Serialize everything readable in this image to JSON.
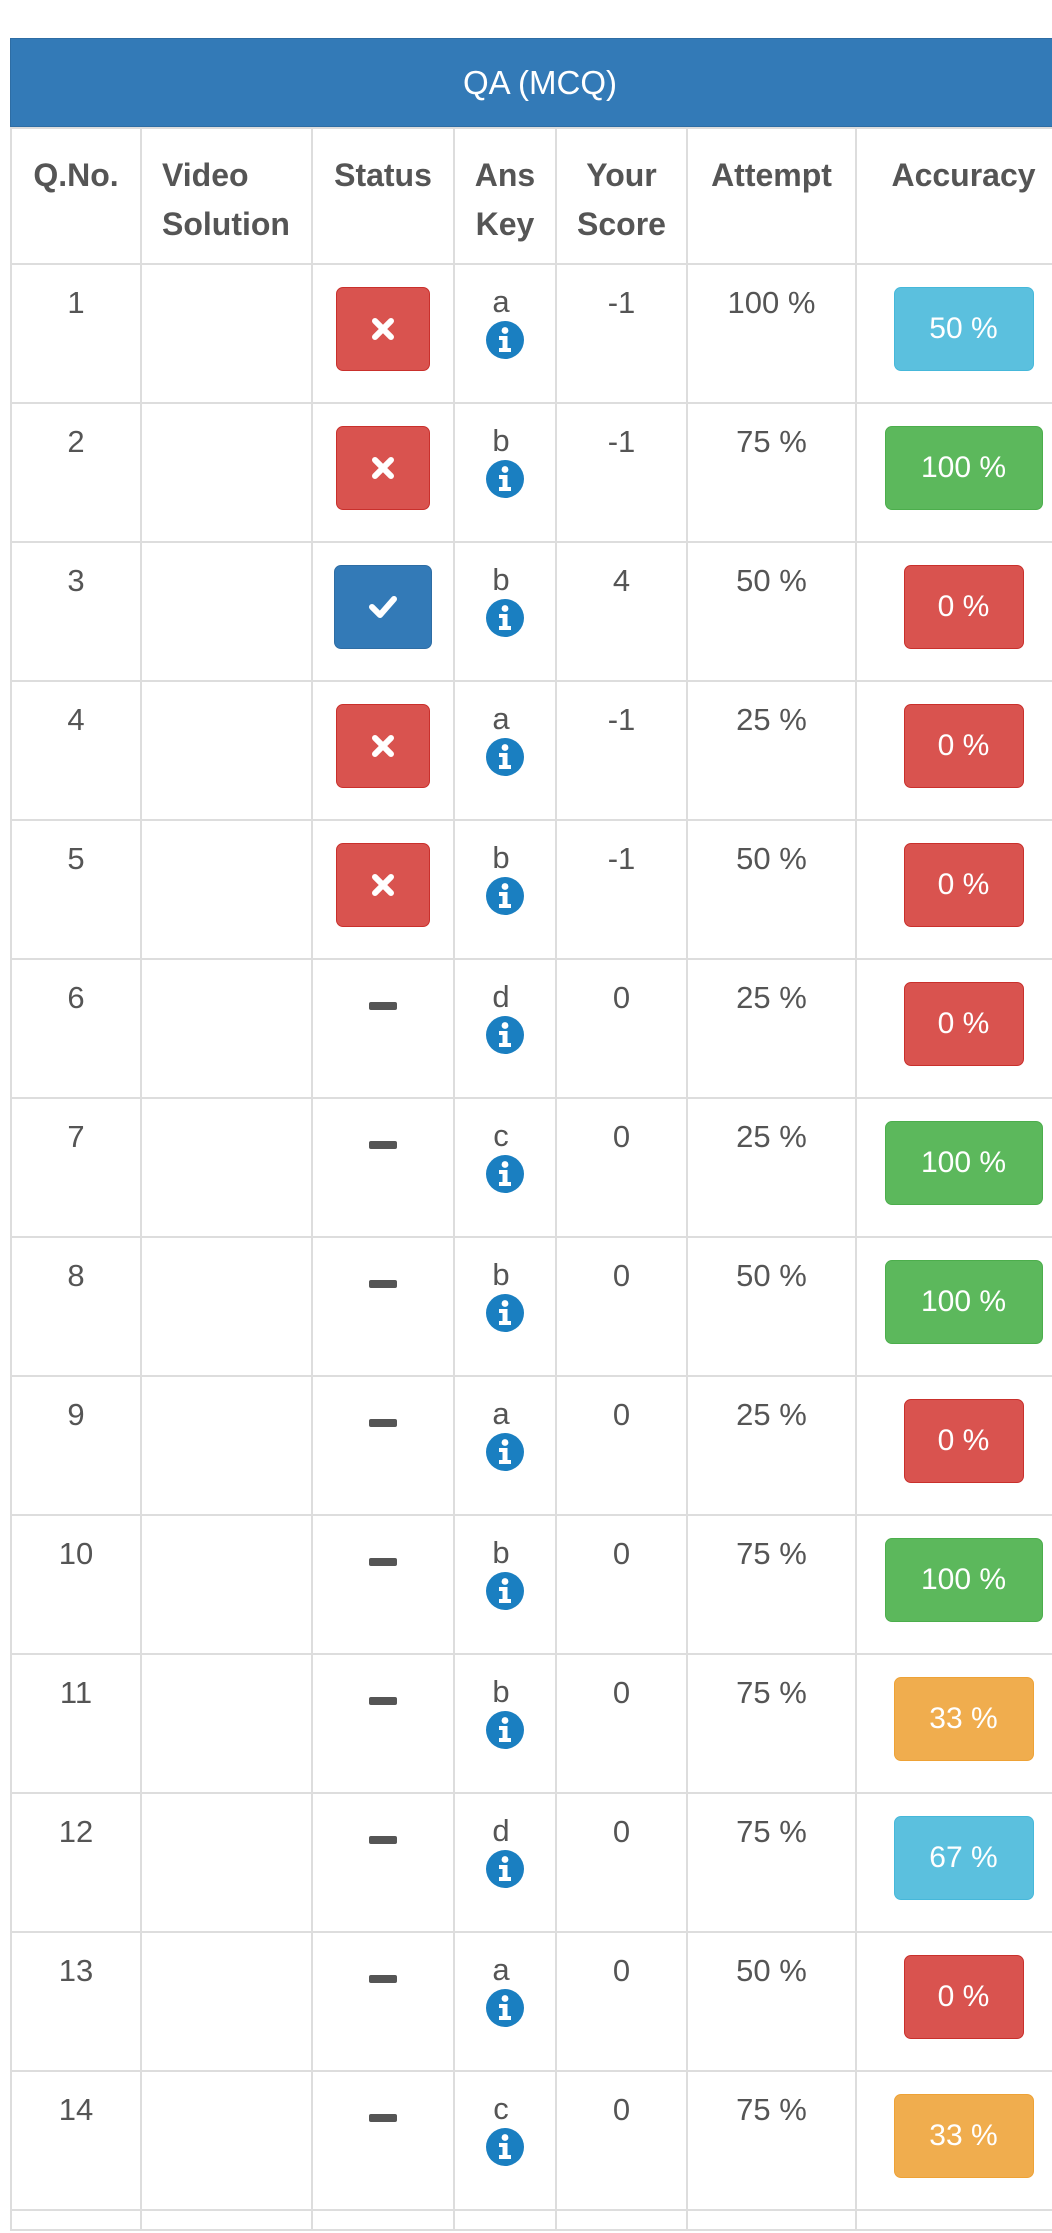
{
  "section_title": "QA (MCQ)",
  "headers": {
    "qno": "Q.No.",
    "video_line1": "Video",
    "video_line2": "Solution",
    "status": "Status",
    "anskey_line1": "Ans",
    "anskey_line2": "Key",
    "score_line1": "Your",
    "score_line2": "Score",
    "attempt": "Attempt",
    "accuracy": "Accuracy"
  },
  "icons": {
    "wrong": "close-icon",
    "correct": "check-icon",
    "unattempted": "dash-icon",
    "info": "info-icon"
  },
  "colors": {
    "primary": "#337ab7",
    "danger": "#d9534f",
    "success": "#5cb85c",
    "info": "#5bc0de",
    "warning": "#f0ad4e"
  },
  "rows": [
    {
      "qno": "1",
      "status": "wrong",
      "key": "a",
      "score": "-1",
      "attempt": "100 %",
      "accuracy": "50 %",
      "accuracy_style": "info"
    },
    {
      "qno": "2",
      "status": "wrong",
      "key": "b",
      "score": "-1",
      "attempt": "75 %",
      "accuracy": "100 %",
      "accuracy_style": "success"
    },
    {
      "qno": "3",
      "status": "correct",
      "key": "b",
      "score": "4",
      "attempt": "50 %",
      "accuracy": "0 %",
      "accuracy_style": "danger"
    },
    {
      "qno": "4",
      "status": "wrong",
      "key": "a",
      "score": "-1",
      "attempt": "25 %",
      "accuracy": "0 %",
      "accuracy_style": "danger"
    },
    {
      "qno": "5",
      "status": "wrong",
      "key": "b",
      "score": "-1",
      "attempt": "50 %",
      "accuracy": "0 %",
      "accuracy_style": "danger"
    },
    {
      "qno": "6",
      "status": "unattempted",
      "key": "d",
      "score": "0",
      "attempt": "25 %",
      "accuracy": "0 %",
      "accuracy_style": "danger"
    },
    {
      "qno": "7",
      "status": "unattempted",
      "key": "c",
      "score": "0",
      "attempt": "25 %",
      "accuracy": "100 %",
      "accuracy_style": "success"
    },
    {
      "qno": "8",
      "status": "unattempted",
      "key": "b",
      "score": "0",
      "attempt": "50 %",
      "accuracy": "100 %",
      "accuracy_style": "success"
    },
    {
      "qno": "9",
      "status": "unattempted",
      "key": "a",
      "score": "0",
      "attempt": "25 %",
      "accuracy": "0 %",
      "accuracy_style": "danger"
    },
    {
      "qno": "10",
      "status": "unattempted",
      "key": "b",
      "score": "0",
      "attempt": "75 %",
      "accuracy": "100 %",
      "accuracy_style": "success"
    },
    {
      "qno": "11",
      "status": "unattempted",
      "key": "b",
      "score": "0",
      "attempt": "75 %",
      "accuracy": "33 %",
      "accuracy_style": "warning"
    },
    {
      "qno": "12",
      "status": "unattempted",
      "key": "d",
      "score": "0",
      "attempt": "75 %",
      "accuracy": "67 %",
      "accuracy_style": "info"
    },
    {
      "qno": "13",
      "status": "unattempted",
      "key": "a",
      "score": "0",
      "attempt": "50 %",
      "accuracy": "0 %",
      "accuracy_style": "danger"
    },
    {
      "qno": "14",
      "status": "unattempted",
      "key": "c",
      "score": "0",
      "attempt": "75 %",
      "accuracy": "33 %",
      "accuracy_style": "warning"
    }
  ]
}
